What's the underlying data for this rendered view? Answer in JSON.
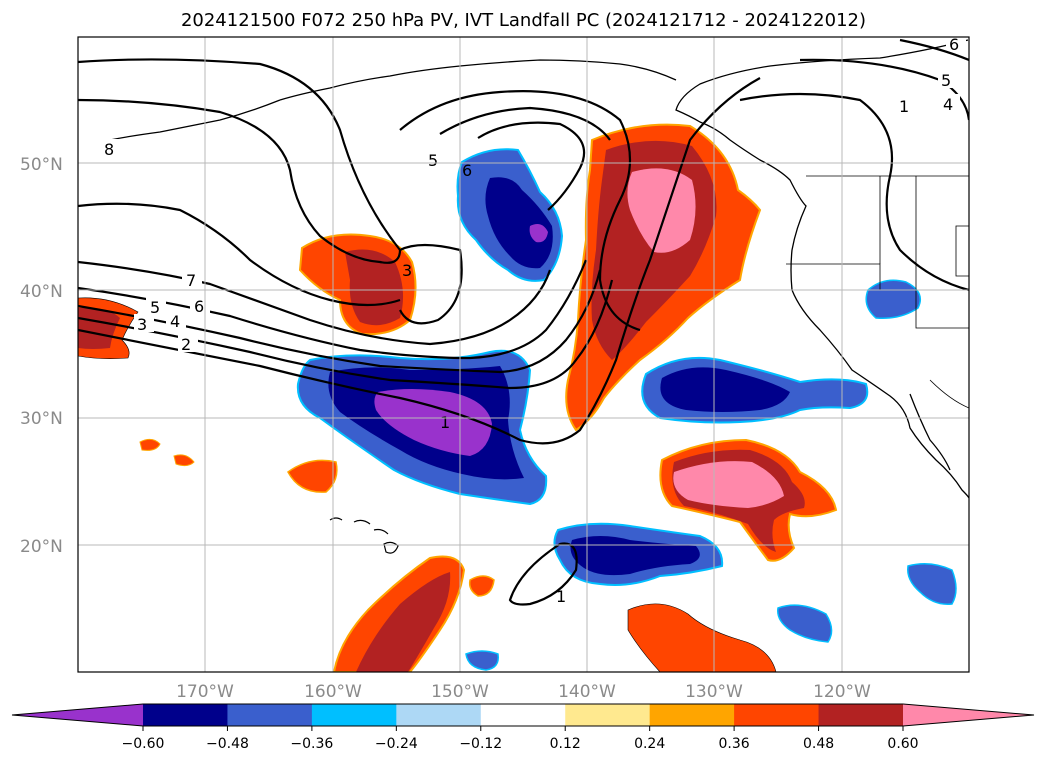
{
  "title": "2024121500 F072 250 hPa PV, IVT Landfall PC (2024121712 - 2024122012)",
  "lat_ticks": [
    "50°N",
    "40°N",
    "30°N",
    "20°N"
  ],
  "lon_ticks": [
    "170°W",
    "160°W",
    "150°W",
    "140°W",
    "130°W",
    "120°W"
  ],
  "colorbar": {
    "ticks": [
      "−0.60",
      "−0.48",
      "−0.36",
      "−0.24",
      "−0.12",
      "0.12",
      "0.24",
      "0.36",
      "0.48",
      "0.60"
    ],
    "colors": [
      "#9932cc",
      "#00008b",
      "#3a5fcd",
      "#00bfff",
      "#add8f5",
      "#ffffff",
      "#ffe98f",
      "#ffa500",
      "#ff4500",
      "#b22222",
      "#ff88aa"
    ]
  },
  "contour_labels": [
    "8",
    "7",
    "6",
    "5",
    "4",
    "3",
    "2",
    "1",
    "5",
    "6",
    "3",
    "4",
    "5",
    "6",
    "1",
    "1"
  ]
}
